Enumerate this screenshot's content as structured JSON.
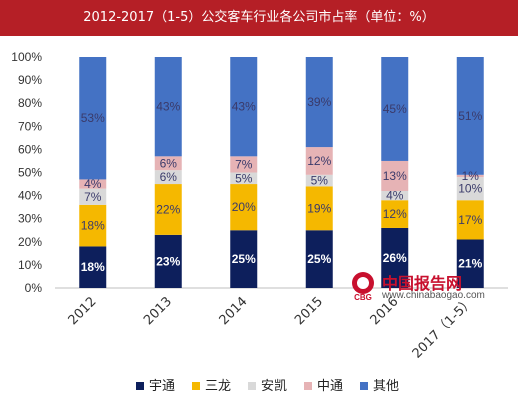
{
  "title": "2012-2017（1-5）公交客车行业各公司市占率（单位：%）",
  "colors": {
    "title_bg": "#b51f26",
    "series": [
      "#0d1f5c",
      "#f5b800",
      "#d9d9d9",
      "#e6b3b5",
      "#4472c4"
    ],
    "label_dark": "#ffffff",
    "label_light": "#3a3a6a",
    "watermark_red": "#c8102e"
  },
  "chart_data": {
    "type": "bar",
    "stacked": true,
    "title": "2012-2017（1-5）公交客车行业各公司市占率（单位：%）",
    "xlabel": "",
    "ylabel": "",
    "ylim": [
      0,
      100
    ],
    "yticks": [
      "0%",
      "10%",
      "20%",
      "30%",
      "40%",
      "50%",
      "60%",
      "70%",
      "80%",
      "90%",
      "100%"
    ],
    "categories": [
      "2012",
      "2013",
      "2014",
      "2015",
      "2016",
      "2017（1-5）"
    ],
    "series": [
      {
        "name": "宇通",
        "values": [
          18,
          23,
          25,
          25,
          26,
          21
        ],
        "labels": [
          "18%",
          "23%",
          "25%",
          "25%",
          "26%",
          "21%"
        ]
      },
      {
        "name": "三龙",
        "values": [
          18,
          22,
          20,
          19,
          12,
          17
        ],
        "labels": [
          "18%",
          "22%",
          "20%",
          "19%",
          "12%",
          "17%"
        ]
      },
      {
        "name": "安凯",
        "values": [
          7,
          6,
          5,
          5,
          4,
          10
        ],
        "labels": [
          "7%",
          "6%",
          "5%",
          "5%",
          "4%",
          "10%"
        ]
      },
      {
        "name": "中通",
        "values": [
          4,
          6,
          7,
          12,
          13,
          1
        ],
        "labels": [
          "4%",
          "6%",
          "7%",
          "12%",
          "13%",
          "1%"
        ]
      },
      {
        "name": "其他",
        "values": [
          53,
          43,
          43,
          39,
          45,
          51
        ],
        "labels": [
          "53%",
          "43%",
          "43%",
          "39%",
          "45%",
          "51%"
        ]
      }
    ],
    "legend": "bottom",
    "grid": false
  },
  "watermark": {
    "name": "中国报告网",
    "url": "www.chinabaogao.com",
    "badge": "CBG"
  }
}
